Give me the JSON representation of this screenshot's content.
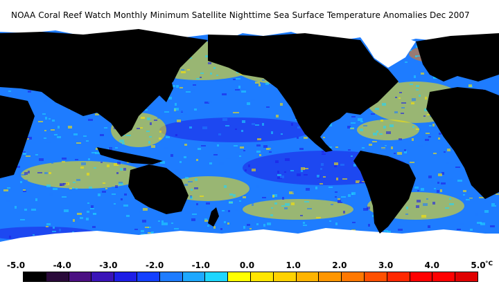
{
  "title": "NOAA Coral Reef Watch Monthly Minimum Satellite Nighttime Sea Surface Temperature Anomalies",
  "date": "Dec 2007",
  "legend": {
    "tick_labels": [
      "-5.0",
      "-4.0",
      "-3.0",
      "-2.0",
      "-1.0",
      "0.0",
      "1.0",
      "2.0",
      "3.0",
      "4.0",
      "5.0"
    ],
    "unit": "°C",
    "colors": [
      "#000000",
      "#2a0a3a",
      "#4b1082",
      "#3a14b8",
      "#1e1ee6",
      "#1440ff",
      "#1e7cff",
      "#1ea8ff",
      "#1ed6ff",
      "#ffff00",
      "#ffe600",
      "#ffd200",
      "#ffb400",
      "#ff9600",
      "#ff7800",
      "#ff5000",
      "#ff2800",
      "#ff0000",
      "#ff0000",
      "#e00000"
    ]
  },
  "map_colors": {
    "land": "#000000",
    "ice": "#ffffff",
    "ocean_base": "#1e7cff",
    "cool": "#1e1ee6",
    "neutral": "#1ed6ff",
    "warm": "#ffe600",
    "hot": "#ff7800"
  }
}
